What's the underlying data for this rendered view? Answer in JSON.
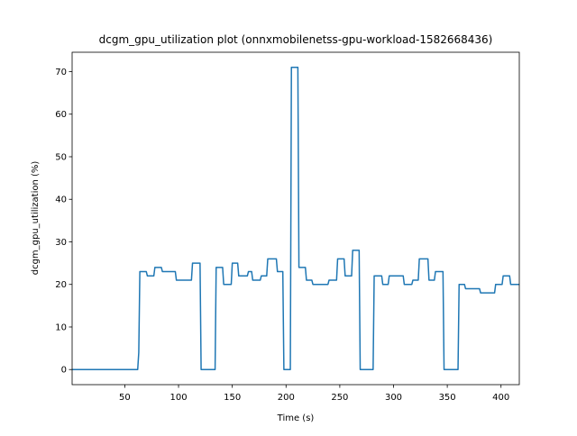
{
  "chart_data": {
    "type": "line",
    "title": "dcgm_gpu_utilization plot (onnxmobilenetss-gpu-workload-1582668436)",
    "x_label": "Time (s)",
    "y_label": "dcgm_gpu_utilization (%)",
    "x": [
      1,
      62,
      63,
      64,
      70,
      71,
      77,
      78,
      84,
      85,
      97,
      98,
      112,
      113,
      120,
      121,
      134,
      135,
      141,
      142,
      149,
      150,
      155,
      156,
      164,
      165,
      168,
      169,
      176,
      177,
      182,
      183,
      191,
      192,
      197,
      198,
      204,
      205,
      211,
      212,
      218,
      219,
      224,
      225,
      239,
      240,
      247,
      248,
      254,
      255,
      261,
      262,
      268,
      269,
      281,
      282,
      289,
      290,
      295,
      296,
      309,
      310,
      317,
      318,
      323,
      324,
      332,
      333,
      338,
      339,
      346,
      347,
      360,
      361,
      366,
      367,
      380,
      381,
      394,
      395,
      401,
      402,
      408,
      409,
      417
    ],
    "series": [
      {
        "color": "#1f77b4",
        "values": [
          0,
          0,
          4,
          23,
          23,
          22,
          22,
          24,
          24,
          23,
          23,
          21,
          21,
          25,
          25,
          0,
          0,
          24,
          24,
          20,
          20,
          25,
          25,
          22,
          22,
          23,
          23,
          21,
          21,
          22,
          22,
          26,
          26,
          23,
          23,
          0,
          0,
          71,
          71,
          24,
          24,
          21,
          21,
          20,
          20,
          21,
          21,
          26,
          26,
          22,
          22,
          28,
          28,
          0,
          0,
          22,
          22,
          20,
          20,
          22,
          22,
          20,
          20,
          21,
          21,
          26,
          26,
          21,
          21,
          23,
          23,
          0,
          0,
          20,
          20,
          19,
          19,
          18,
          18,
          20,
          20,
          22,
          22,
          20,
          20
        ]
      }
    ],
    "xlim": [
      1,
      417
    ],
    "ylim": [
      -3.55,
      74.55
    ],
    "xticks": [
      50,
      100,
      150,
      200,
      250,
      300,
      350,
      400
    ],
    "yticks": [
      0,
      10,
      20,
      30,
      40,
      50,
      60,
      70
    ]
  }
}
